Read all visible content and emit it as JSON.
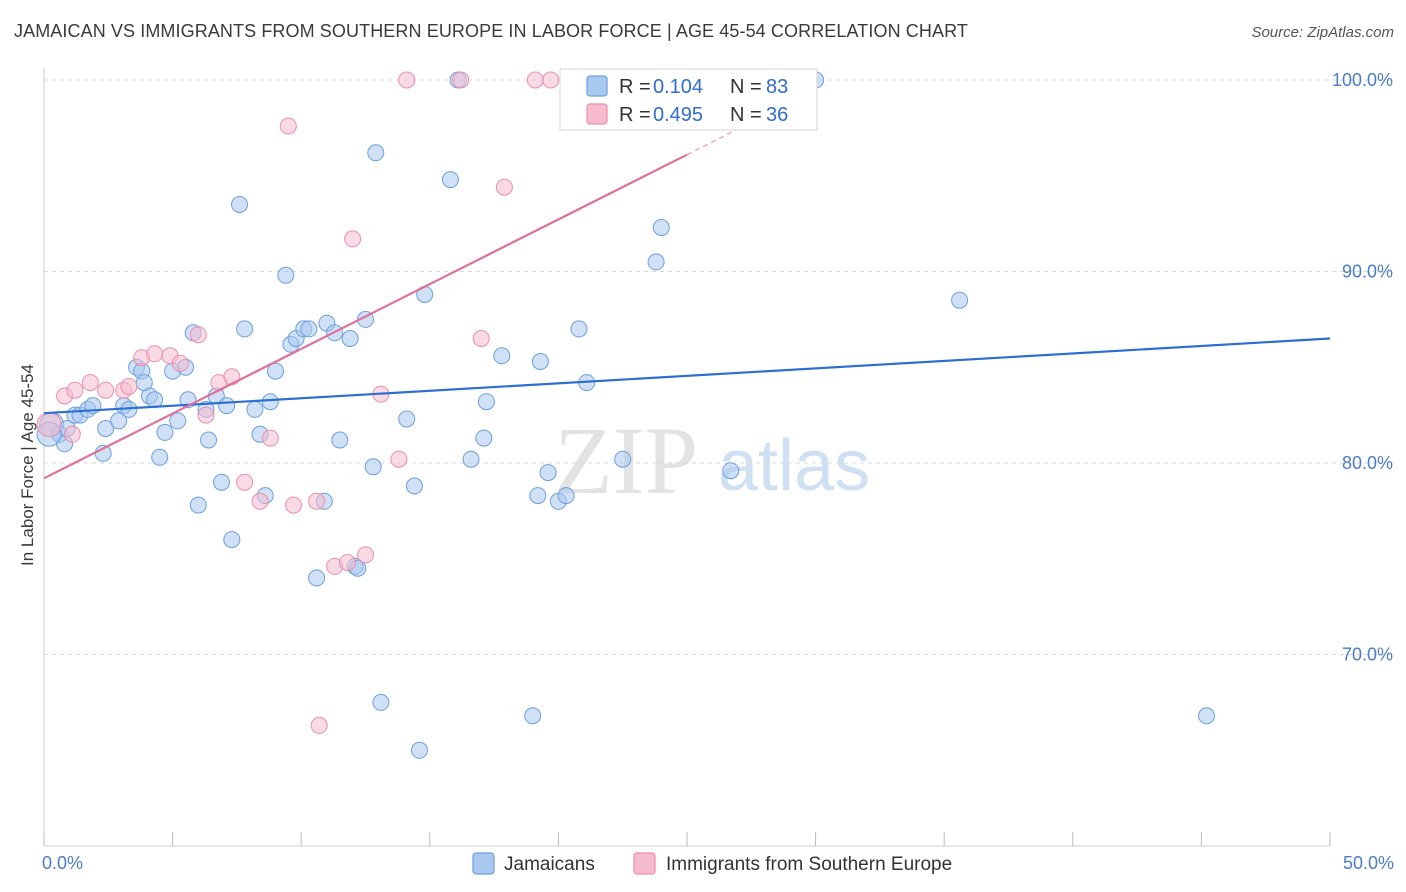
{
  "title": "JAMAICAN VS IMMIGRANTS FROM SOUTHERN EUROPE IN LABOR FORCE | AGE 45-54 CORRELATION CHART",
  "source": "Source: ZipAtlas.com",
  "watermark": {
    "zip": "ZIP",
    "atlas": "atlas"
  },
  "colors": {
    "blue_fill": "#a9c8ef",
    "blue_stroke": "#6b9fe0",
    "blue_line": "#2c6fcf",
    "pink_fill": "#f6bccd",
    "pink_stroke": "#ec8eab",
    "pink_line": "#e0709a",
    "tick_label": "#4a7cc9",
    "grid": "#d9d9d9"
  },
  "legend": {
    "r_label": "R =",
    "n_label": "N =",
    "series": [
      {
        "r": "0.104",
        "n": "83"
      },
      {
        "r": "0.495",
        "n": "36"
      }
    ]
  },
  "chart_data": {
    "type": "scatter",
    "xlabel": "",
    "ylabel": "In Labor Force | Age 45-54",
    "xlim": [
      0,
      50
    ],
    "ylim": [
      60,
      100
    ],
    "x_tick_labels": [
      "0.0%",
      "50.0%"
    ],
    "y_ticks": [
      70,
      80,
      90,
      100
    ],
    "y_tick_labels": [
      "70.0%",
      "80.0%",
      "90.0%",
      "100.0%"
    ],
    "series": [
      {
        "name": "Jamaicans",
        "trend": {
          "x": [
            0,
            50
          ],
          "y": [
            82.6,
            86.5
          ]
        },
        "points": [
          [
            0.3,
            82.0
          ],
          [
            0.6,
            81.5
          ],
          [
            0.8,
            81.0
          ],
          [
            0.9,
            81.8
          ],
          [
            1.2,
            82.5
          ],
          [
            1.4,
            82.5
          ],
          [
            1.7,
            82.8
          ],
          [
            1.9,
            83.0
          ],
          [
            2.3,
            80.5
          ],
          [
            2.4,
            81.8
          ],
          [
            2.9,
            82.2
          ],
          [
            3.1,
            83.0
          ],
          [
            3.3,
            82.8
          ],
          [
            3.6,
            85.0
          ],
          [
            3.8,
            84.8
          ],
          [
            4.1,
            83.5
          ],
          [
            4.3,
            83.3
          ],
          [
            4.5,
            80.3
          ],
          [
            4.7,
            81.6
          ],
          [
            5.0,
            84.8
          ],
          [
            5.2,
            82.2
          ],
          [
            5.5,
            85.0
          ],
          [
            5.6,
            83.3
          ],
          [
            5.8,
            86.8
          ],
          [
            6.0,
            77.8
          ],
          [
            6.3,
            82.8
          ],
          [
            6.4,
            81.2
          ],
          [
            6.7,
            83.5
          ],
          [
            6.9,
            79.0
          ],
          [
            7.1,
            83.0
          ],
          [
            7.3,
            76.0
          ],
          [
            7.6,
            93.5
          ],
          [
            7.8,
            87.0
          ],
          [
            8.2,
            82.8
          ],
          [
            8.4,
            81.5
          ],
          [
            8.6,
            78.3
          ],
          [
            8.8,
            83.2
          ],
          [
            9.0,
            84.8
          ],
          [
            9.4,
            89.8
          ],
          [
            9.6,
            86.2
          ],
          [
            9.8,
            86.5
          ],
          [
            10.1,
            87.0
          ],
          [
            10.3,
            87.0
          ],
          [
            10.6,
            74.0
          ],
          [
            10.9,
            78.0
          ],
          [
            11.0,
            87.3
          ],
          [
            11.3,
            86.8
          ],
          [
            11.5,
            81.2
          ],
          [
            11.9,
            86.5
          ],
          [
            12.1,
            74.6
          ],
          [
            12.5,
            87.5
          ],
          [
            12.8,
            79.8
          ],
          [
            12.9,
            96.2
          ],
          [
            13.1,
            67.5
          ],
          [
            14.1,
            82.3
          ],
          [
            14.4,
            78.8
          ],
          [
            14.6,
            65.0
          ],
          [
            14.8,
            88.8
          ],
          [
            15.8,
            94.8
          ],
          [
            16.1,
            100.0
          ],
          [
            16.6,
            80.2
          ],
          [
            17.1,
            81.3
          ],
          [
            17.2,
            83.2
          ],
          [
            17.8,
            85.6
          ],
          [
            19.0,
            66.8
          ],
          [
            19.2,
            78.3
          ],
          [
            19.3,
            85.3
          ],
          [
            19.6,
            79.5
          ],
          [
            20.0,
            78.0
          ],
          [
            20.3,
            78.3
          ],
          [
            20.8,
            87.0
          ],
          [
            21.1,
            84.2
          ],
          [
            22.5,
            80.2
          ],
          [
            23.8,
            90.5
          ],
          [
            24.0,
            92.3
          ],
          [
            26.7,
            79.6
          ],
          [
            29.1,
            100.0
          ],
          [
            30.0,
            100.0
          ],
          [
            35.6,
            88.5
          ],
          [
            45.2,
            66.8
          ],
          [
            0.2,
            81.5
          ],
          [
            3.9,
            84.2
          ],
          [
            12.2,
            74.5
          ]
        ]
      },
      {
        "name": "Immigrants from Southern Europe",
        "trend": {
          "x": [
            0,
            50
          ],
          "y": [
            79.2,
            113.0
          ]
        },
        "points": [
          [
            0.2,
            82.0
          ],
          [
            0.8,
            83.5
          ],
          [
            1.2,
            83.8
          ],
          [
            1.8,
            84.2
          ],
          [
            2.4,
            83.8
          ],
          [
            3.1,
            83.8
          ],
          [
            3.3,
            84.0
          ],
          [
            3.8,
            85.5
          ],
          [
            4.3,
            85.7
          ],
          [
            4.9,
            85.6
          ],
          [
            5.3,
            85.2
          ],
          [
            6.0,
            86.7
          ],
          [
            6.3,
            82.5
          ],
          [
            6.8,
            84.2
          ],
          [
            7.3,
            84.5
          ],
          [
            7.8,
            79.0
          ],
          [
            8.4,
            78.0
          ],
          [
            8.8,
            81.3
          ],
          [
            9.5,
            97.6
          ],
          [
            9.7,
            77.8
          ],
          [
            10.6,
            78.0
          ],
          [
            10.7,
            66.3
          ],
          [
            11.3,
            74.6
          ],
          [
            11.8,
            74.8
          ],
          [
            12.0,
            91.7
          ],
          [
            12.5,
            75.2
          ],
          [
            13.1,
            83.6
          ],
          [
            13.8,
            80.2
          ],
          [
            14.1,
            100.0
          ],
          [
            16.2,
            100.0
          ],
          [
            17.0,
            86.5
          ],
          [
            17.9,
            94.4
          ],
          [
            19.1,
            100.0
          ],
          [
            19.7,
            100.0
          ],
          [
            20.4,
            100.0
          ],
          [
            1.1,
            81.5
          ]
        ]
      }
    ]
  },
  "bottom_legend": [
    "Jamaicans",
    "Immigrants from Southern Europe"
  ]
}
